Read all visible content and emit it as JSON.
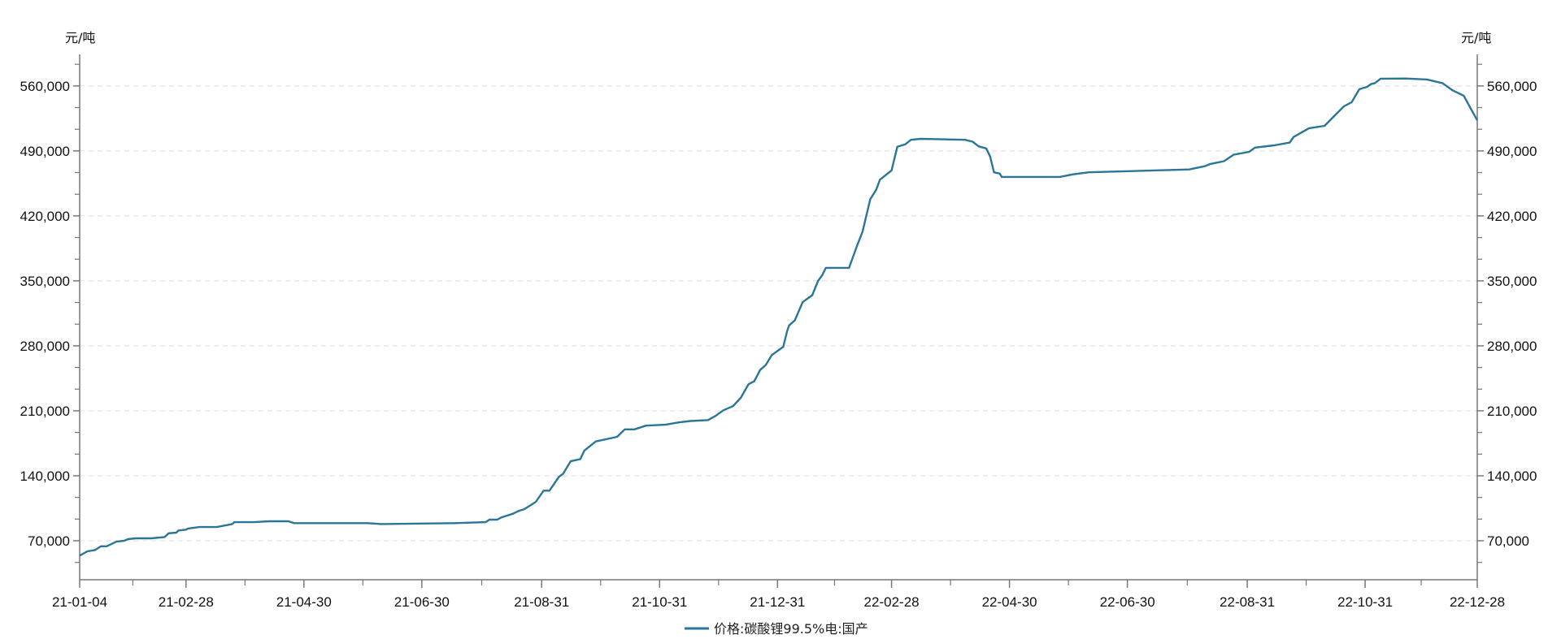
{
  "chart_data": {
    "type": "line",
    "title": "",
    "y_unit_left": "元/吨",
    "y_unit_right": "元/吨",
    "ylim": [
      28000,
      594000
    ],
    "y_ticks": [
      70000,
      140000,
      210000,
      280000,
      350000,
      420000,
      490000,
      560000
    ],
    "y_tick_labels": [
      "70,000",
      "140,000",
      "210,000",
      "280,000",
      "350,000",
      "420,000",
      "490,000",
      "560,000"
    ],
    "xlim": [
      "2021-01-04",
      "2022-12-28"
    ],
    "x_ticks": [
      "2021-01-04",
      "2021-02-28",
      "2021-04-30",
      "2021-06-30",
      "2021-08-31",
      "2021-10-31",
      "2021-12-31",
      "2022-02-28",
      "2022-04-30",
      "2022-06-30",
      "2022-08-31",
      "2022-10-31",
      "2022-12-28"
    ],
    "x_tick_labels": [
      "21-01-04",
      "21-02-28",
      "21-04-30",
      "21-06-30",
      "21-08-31",
      "21-10-31",
      "21-12-31",
      "22-02-28",
      "22-04-30",
      "22-06-30",
      "22-08-31",
      "22-10-31",
      "22-12-28"
    ],
    "grid": "horizontal dashed",
    "legend_position": "bottom-center",
    "series": [
      {
        "name": "价格:碳酸锂99.5%电:国产",
        "color": "#2b7596",
        "points": [
          [
            "2021-01-04",
            54000
          ],
          [
            "2021-01-08",
            58600
          ],
          [
            "2021-01-12",
            60000
          ],
          [
            "2021-01-15",
            64000
          ],
          [
            "2021-01-18",
            64000
          ],
          [
            "2021-01-23",
            69000
          ],
          [
            "2021-01-27",
            70000
          ],
          [
            "2021-01-29",
            71700
          ],
          [
            "2021-02-02",
            72600
          ],
          [
            "2021-02-10",
            72600
          ],
          [
            "2021-02-17",
            74000
          ],
          [
            "2021-02-19",
            78000
          ],
          [
            "2021-02-23",
            78700
          ],
          [
            "2021-02-24",
            81000
          ],
          [
            "2021-02-28",
            82000
          ],
          [
            "2021-03-01",
            83000
          ],
          [
            "2021-03-07",
            84800
          ],
          [
            "2021-03-16",
            84800
          ],
          [
            "2021-03-24",
            88000
          ],
          [
            "2021-03-25",
            90000
          ],
          [
            "2021-04-04",
            90000
          ],
          [
            "2021-04-12",
            91000
          ],
          [
            "2021-04-22",
            91000
          ],
          [
            "2021-04-25",
            89000
          ],
          [
            "2021-06-02",
            89000
          ],
          [
            "2021-06-09",
            88000
          ],
          [
            "2021-07-17",
            89000
          ],
          [
            "2021-08-02",
            90000
          ],
          [
            "2021-08-04",
            92700
          ],
          [
            "2021-08-08",
            92700
          ],
          [
            "2021-08-10",
            95000
          ],
          [
            "2021-08-16",
            99000
          ],
          [
            "2021-08-19",
            102000
          ],
          [
            "2021-08-22",
            104000
          ],
          [
            "2021-08-25",
            108000
          ],
          [
            "2021-08-28",
            112000
          ],
          [
            "2021-09-01",
            124000
          ],
          [
            "2021-09-04",
            124000
          ],
          [
            "2021-09-09",
            139000
          ],
          [
            "2021-09-11",
            142000
          ],
          [
            "2021-09-15",
            155600
          ],
          [
            "2021-09-20",
            158000
          ],
          [
            "2021-09-22",
            167000
          ],
          [
            "2021-09-28",
            177000
          ],
          [
            "2021-10-09",
            182000
          ],
          [
            "2021-10-13",
            190000
          ],
          [
            "2021-10-18",
            190000
          ],
          [
            "2021-10-24",
            194000
          ],
          [
            "2021-11-03",
            195000
          ],
          [
            "2021-11-10",
            197500
          ],
          [
            "2021-11-16",
            199000
          ],
          [
            "2021-11-25",
            200000
          ],
          [
            "2021-11-29",
            204500
          ],
          [
            "2021-12-03",
            210600
          ],
          [
            "2021-12-08",
            215000
          ],
          [
            "2021-12-12",
            224000
          ],
          [
            "2021-12-16",
            238600
          ],
          [
            "2021-12-19",
            242000
          ],
          [
            "2021-12-22",
            254000
          ],
          [
            "2021-12-25",
            259500
          ],
          [
            "2021-12-28",
            270000
          ],
          [
            "2022-01-03",
            279000
          ],
          [
            "2022-01-05",
            296000
          ],
          [
            "2022-01-06",
            302000
          ],
          [
            "2022-01-09",
            307600
          ],
          [
            "2022-01-13",
            327000
          ],
          [
            "2022-01-18",
            334600
          ],
          [
            "2022-01-21",
            350000
          ],
          [
            "2022-01-23",
            355600
          ],
          [
            "2022-01-25",
            364000
          ],
          [
            "2022-02-06",
            364000
          ],
          [
            "2022-02-10",
            387000
          ],
          [
            "2022-02-13",
            403000
          ],
          [
            "2022-02-17",
            438000
          ],
          [
            "2022-02-20",
            448000
          ],
          [
            "2022-02-22",
            459000
          ],
          [
            "2022-02-25",
            464000
          ],
          [
            "2022-02-28",
            469000
          ],
          [
            "2022-03-03",
            494500
          ],
          [
            "2022-03-07",
            497000
          ],
          [
            "2022-03-10",
            502000
          ],
          [
            "2022-03-15",
            503000
          ],
          [
            "2022-04-07",
            502000
          ],
          [
            "2022-04-11",
            500000
          ],
          [
            "2022-04-14",
            495000
          ],
          [
            "2022-04-18",
            492700
          ],
          [
            "2022-04-20",
            484000
          ],
          [
            "2022-04-22",
            467000
          ],
          [
            "2022-04-25",
            465600
          ],
          [
            "2022-04-26",
            462000
          ],
          [
            "2022-05-26",
            462000
          ],
          [
            "2022-06-02",
            464800
          ],
          [
            "2022-06-10",
            467000
          ],
          [
            "2022-08-01",
            470000
          ],
          [
            "2022-08-09",
            473500
          ],
          [
            "2022-08-12",
            476000
          ],
          [
            "2022-08-19",
            479000
          ],
          [
            "2022-08-24",
            486000
          ],
          [
            "2022-09-01",
            489000
          ],
          [
            "2022-09-04",
            493600
          ],
          [
            "2022-09-14",
            496000
          ],
          [
            "2022-09-22",
            499000
          ],
          [
            "2022-09-24",
            505000
          ],
          [
            "2022-10-02",
            514500
          ],
          [
            "2022-10-10",
            517000
          ],
          [
            "2022-10-15",
            527600
          ],
          [
            "2022-10-20",
            538000
          ],
          [
            "2022-10-24",
            542500
          ],
          [
            "2022-10-28",
            556500
          ],
          [
            "2022-11-01",
            559000
          ],
          [
            "2022-11-03",
            562000
          ],
          [
            "2022-11-05",
            563000
          ],
          [
            "2022-11-08",
            567800
          ],
          [
            "2022-11-21",
            568000
          ],
          [
            "2022-12-02",
            567000
          ],
          [
            "2022-12-10",
            563000
          ],
          [
            "2022-12-15",
            555600
          ],
          [
            "2022-12-21",
            549500
          ],
          [
            "2022-12-24",
            538000
          ],
          [
            "2022-12-28",
            523000
          ]
        ]
      }
    ]
  }
}
